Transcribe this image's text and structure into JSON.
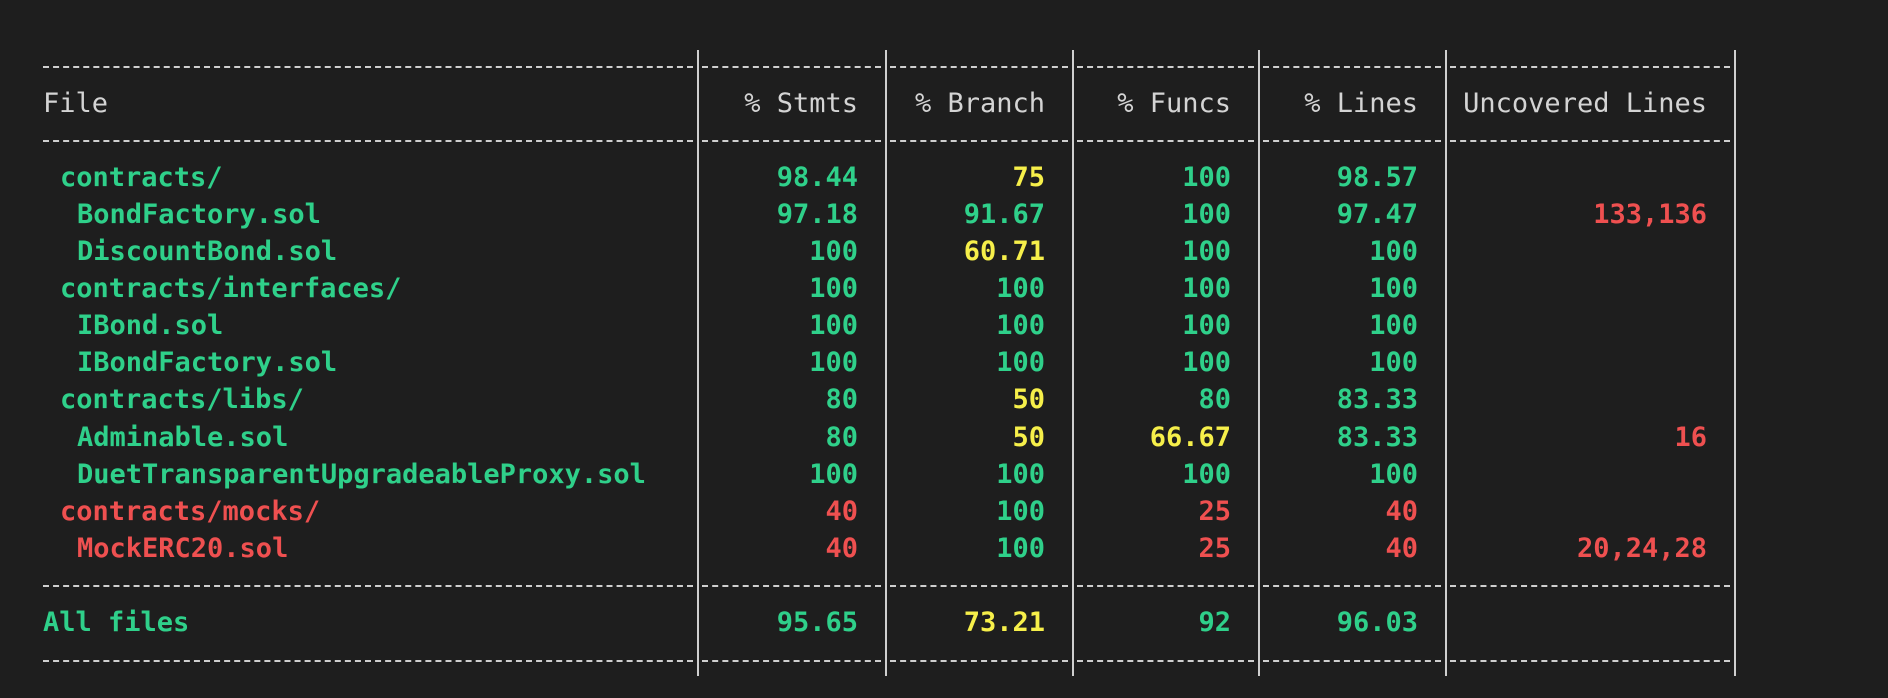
{
  "table": {
    "headers": [
      "File",
      "% Stmts",
      "% Branch",
      "% Funcs",
      "% Lines",
      "Uncovered Lines"
    ],
    "rows": [
      {
        "file": "contracts/",
        "level": 1,
        "file_color": "green",
        "values": [
          98.44,
          75,
          100,
          98.57
        ],
        "colors": [
          "green",
          "yellow",
          "green",
          "green"
        ]
      },
      {
        "file": "BondFactory.sol",
        "level": 2,
        "file_color": "green",
        "values": [
          97.18,
          91.67,
          100,
          97.47
        ],
        "colors": [
          "green",
          "green",
          "green",
          "green"
        ],
        "uncovered": "133,136"
      },
      {
        "file": "DiscountBond.sol",
        "level": 2,
        "file_color": "green",
        "values": [
          100,
          60.71,
          100,
          100
        ],
        "colors": [
          "green",
          "yellow",
          "green",
          "green"
        ]
      },
      {
        "file": "contracts/interfaces/",
        "level": 1,
        "file_color": "green",
        "values": [
          100,
          100,
          100,
          100
        ],
        "colors": [
          "green",
          "green",
          "green",
          "green"
        ]
      },
      {
        "file": "IBond.sol",
        "level": 2,
        "file_color": "green",
        "values": [
          100,
          100,
          100,
          100
        ],
        "colors": [
          "green",
          "green",
          "green",
          "green"
        ]
      },
      {
        "file": "IBondFactory.sol",
        "level": 2,
        "file_color": "green",
        "values": [
          100,
          100,
          100,
          100
        ],
        "colors": [
          "green",
          "green",
          "green",
          "green"
        ]
      },
      {
        "file": "contracts/libs/",
        "level": 1,
        "file_color": "green",
        "values": [
          80,
          50,
          80,
          83.33
        ],
        "colors": [
          "green",
          "yellow",
          "green",
          "green"
        ]
      },
      {
        "file": "Adminable.sol",
        "level": 2,
        "file_color": "green",
        "values": [
          80,
          50,
          66.67,
          83.33
        ],
        "colors": [
          "green",
          "yellow",
          "yellow",
          "green"
        ],
        "uncovered": "16"
      },
      {
        "file": "DuetTransparentUpgradeableProxy.sol",
        "level": 2,
        "file_color": "green",
        "values": [
          100,
          100,
          100,
          100
        ],
        "colors": [
          "green",
          "green",
          "green",
          "green"
        ]
      },
      {
        "file": "contracts/mocks/",
        "level": 1,
        "file_color": "red",
        "values": [
          40,
          100,
          25,
          40
        ],
        "colors": [
          "red",
          "green",
          "red",
          "red"
        ]
      },
      {
        "file": "MockERC20.sol",
        "level": 2,
        "file_color": "red",
        "values": [
          40,
          100,
          25,
          40
        ],
        "colors": [
          "red",
          "green",
          "red",
          "red"
        ],
        "uncovered": "20,24,28"
      }
    ],
    "total": {
      "file": "All files",
      "level": 0,
      "file_color": "green",
      "values": [
        95.65,
        73.21,
        92,
        96.03
      ],
      "colors": [
        "green",
        "yellow",
        "green",
        "green"
      ]
    }
  }
}
